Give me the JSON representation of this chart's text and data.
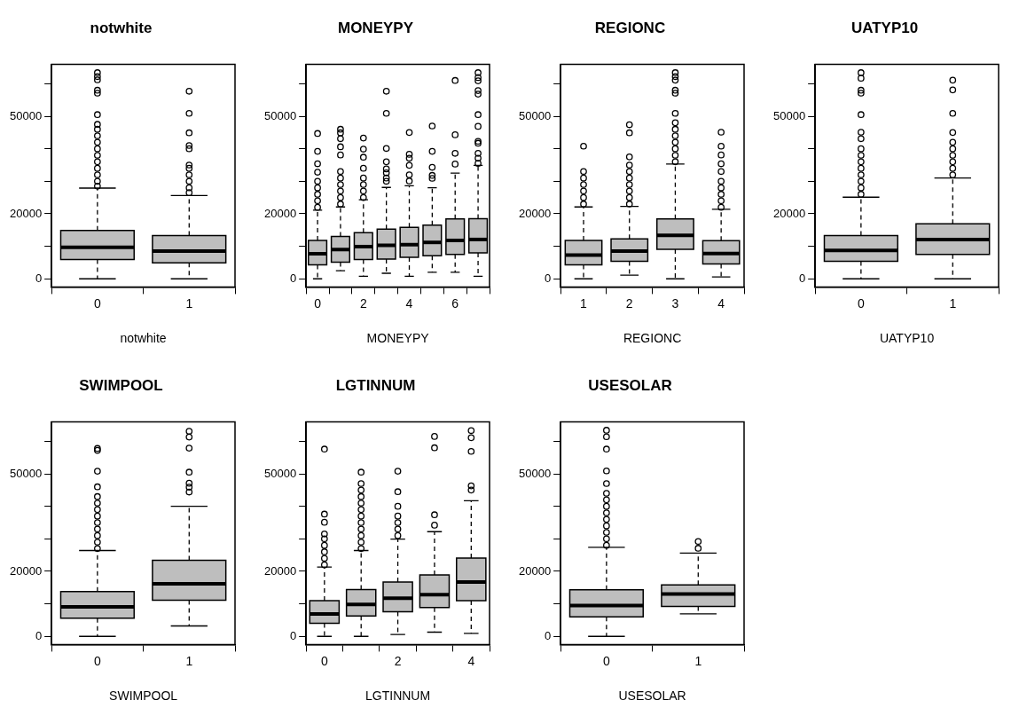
{
  "chart_data": [
    {
      "type": "box",
      "title": "notwhite",
      "xlabel": "notwhite",
      "categories": [
        "0",
        "1"
      ],
      "color": "#bebebe",
      "ylim": [
        -2500,
        66000
      ],
      "yticks": [
        0,
        {
          "value": 10000,
          "label": null
        },
        20000,
        {
          "value": 30000,
          "label": null
        },
        {
          "value": 40000,
          "label": null
        },
        50000,
        {
          "value": 60000,
          "label": null
        }
      ],
      "boxes": [
        {
          "low": 0,
          "q1": 5900,
          "median": 9700,
          "q3": 14900,
          "high": 27900,
          "outliers": [
            28500,
            30000,
            32000,
            34000,
            36000,
            38000,
            40000,
            42000,
            44000,
            46000,
            47500,
            50500,
            57100,
            58000,
            61200,
            62200,
            63400
          ]
        },
        {
          "low": 0,
          "q1": 4900,
          "median": 8500,
          "q3": 13300,
          "high": 25600,
          "outliers": [
            26500,
            28000,
            30000,
            32000,
            34000,
            35000,
            40000,
            41000,
            44900,
            50900,
            57700
          ]
        }
      ]
    },
    {
      "type": "box",
      "title": "MONEYPY",
      "xlabel": "MONEYPY",
      "categories": [
        "0",
        null,
        "2",
        null,
        "4",
        null,
        "6",
        null
      ],
      "color": "#bebebe",
      "ylim": [
        -2500,
        66000
      ],
      "yticks": [
        0,
        {
          "value": 10000,
          "label": null
        },
        20000,
        {
          "value": 30000,
          "label": null
        },
        {
          "value": 40000,
          "label": null
        },
        50000,
        {
          "value": 60000,
          "label": null
        }
      ],
      "boxes": [
        {
          "low": 0,
          "q1": 4300,
          "median": 7700,
          "q3": 11800,
          "high": 21100,
          "outliers": [
            22000,
            24000,
            26000,
            28000,
            30000,
            32800,
            35400,
            39200,
            44700
          ]
        },
        {
          "low": 2500,
          "q1": 5100,
          "median": 9000,
          "q3": 13000,
          "high": 22100,
          "outliers": [
            23000,
            25000,
            27000,
            29000,
            31000,
            33000,
            38100,
            40600,
            43100,
            44900,
            46000
          ]
        },
        {
          "low": 800,
          "q1": 5900,
          "median": 9900,
          "q3": 14200,
          "high": 24300,
          "outliers": [
            25000,
            27000,
            29000,
            31000,
            34000,
            37400,
            39900,
            43300
          ]
        },
        {
          "low": 1700,
          "q1": 6100,
          "median": 10300,
          "q3": 15300,
          "high": 28100,
          "outliers": [
            30000,
            31000,
            32600,
            33800,
            36000,
            40100,
            50900,
            57700
          ]
        },
        {
          "low": 800,
          "q1": 6600,
          "median": 10500,
          "q3": 15800,
          "high": 28600,
          "outliers": [
            30100,
            32000,
            34900,
            37100,
            38300,
            45000
          ]
        },
        {
          "low": 2000,
          "q1": 7100,
          "median": 11200,
          "q3": 16500,
          "high": 28000,
          "outliers": [
            30900,
            31800,
            34300,
            39200,
            47000
          ]
        },
        {
          "low": 2000,
          "q1": 7500,
          "median": 11800,
          "q3": 18400,
          "high": 32500,
          "outliers": [
            35300,
            38600,
            44300,
            61000
          ]
        },
        {
          "low": 800,
          "q1": 8000,
          "median": 12100,
          "q3": 18500,
          "high": 34900,
          "outliers": [
            35500,
            37100,
            38600,
            41700,
            42300,
            46900,
            50500,
            56800,
            57900,
            60900,
            61900,
            63400
          ]
        }
      ]
    },
    {
      "type": "box",
      "title": "REGIONC",
      "xlabel": "REGIONC",
      "categories": [
        "1",
        "2",
        "3",
        "4"
      ],
      "color": "#bebebe",
      "ylim": [
        -2500,
        66000
      ],
      "yticks": [
        0,
        {
          "value": 10000,
          "label": null
        },
        20000,
        {
          "value": 30000,
          "label": null
        },
        {
          "value": 40000,
          "label": null
        },
        50000,
        {
          "value": 60000,
          "label": null
        }
      ],
      "boxes": [
        {
          "low": 0,
          "q1": 4300,
          "median": 7300,
          "q3": 11800,
          "high": 22100,
          "outliers": [
            23000,
            25000,
            27000,
            29000,
            31000,
            33000,
            40800
          ]
        },
        {
          "low": 1100,
          "q1": 5400,
          "median": 8500,
          "q3": 12300,
          "high": 22300,
          "outliers": [
            23000,
            25000,
            27000,
            29000,
            31000,
            33000,
            35000,
            37500,
            44900,
            47400
          ]
        },
        {
          "low": 0,
          "q1": 9100,
          "median": 13400,
          "q3": 18400,
          "high": 35300,
          "outliers": [
            36000,
            38000,
            40000,
            42000,
            44000,
            46000,
            48000,
            50900,
            57100,
            58000,
            61100,
            62200,
            63400
          ]
        },
        {
          "low": 600,
          "q1": 4600,
          "median": 7800,
          "q3": 11700,
          "high": 21400,
          "outliers": [
            22000,
            24000,
            26000,
            28000,
            30000,
            33000,
            35400,
            38100,
            40800,
            45100
          ]
        }
      ]
    },
    {
      "type": "box",
      "title": "UATYP10",
      "xlabel": "UATYP10",
      "categories": [
        "0",
        "1"
      ],
      "color": "#bebebe",
      "ylim": [
        -2500,
        66000
      ],
      "yticks": [
        0,
        {
          "value": 10000,
          "label": null
        },
        20000,
        {
          "value": 30000,
          "label": null
        },
        {
          "value": 40000,
          "label": null
        },
        50000,
        {
          "value": 60000,
          "label": null
        }
      ],
      "boxes": [
        {
          "low": 0,
          "q1": 5400,
          "median": 8700,
          "q3": 13300,
          "high": 25100,
          "outliers": [
            26000,
            28000,
            30000,
            32000,
            34000,
            36000,
            38000,
            40000,
            43100,
            45100,
            50500,
            57100,
            58000,
            61700,
            63400
          ]
        },
        {
          "low": 0,
          "q1": 7500,
          "median": 12100,
          "q3": 16900,
          "high": 31000,
          "outliers": [
            32000,
            34000,
            36000,
            38000,
            40000,
            42000,
            45000,
            50900,
            58100,
            61100
          ]
        }
      ]
    },
    {
      "type": "box",
      "title": "SWIMPOOL",
      "xlabel": "SWIMPOOL",
      "categories": [
        "0",
        "1"
      ],
      "color": "#bebebe",
      "ylim": [
        -2500,
        66000
      ],
      "yticks": [
        0,
        {
          "value": 10000,
          "label": null
        },
        20000,
        {
          "value": 30000,
          "label": null
        },
        {
          "value": 40000,
          "label": null
        },
        50000,
        {
          "value": 60000,
          "label": null
        }
      ],
      "boxes": [
        {
          "low": 0,
          "q1": 5600,
          "median": 9100,
          "q3": 13800,
          "high": 26400,
          "outliers": [
            27000,
            29000,
            31000,
            33000,
            35000,
            37000,
            39000,
            41000,
            43000,
            46000,
            50800,
            57200,
            57800
          ]
        },
        {
          "low": 3200,
          "q1": 11100,
          "median": 16200,
          "q3": 23400,
          "high": 40000,
          "outliers": [
            44400,
            45900,
            47100,
            50500,
            57900,
            61300,
            63100
          ]
        }
      ]
    },
    {
      "type": "box",
      "title": "LGTINNUM",
      "xlabel": "LGTINNUM",
      "categories": [
        "0",
        null,
        "2",
        null,
        "4"
      ],
      "color": "#bebebe",
      "ylim": [
        -2500,
        66000
      ],
      "yticks": [
        0,
        {
          "value": 10000,
          "label": null
        },
        20000,
        {
          "value": 30000,
          "label": null
        },
        {
          "value": 40000,
          "label": null
        },
        50000,
        {
          "value": 60000,
          "label": null
        }
      ],
      "boxes": [
        {
          "low": 0,
          "q1": 4000,
          "median": 6900,
          "q3": 11000,
          "high": 21300,
          "outliers": [
            22000,
            24000,
            26000,
            28000,
            30000,
            31500,
            35100,
            37600,
            57600
          ]
        },
        {
          "low": 0,
          "q1": 6300,
          "median": 9800,
          "q3": 14400,
          "high": 26400,
          "outliers": [
            27000,
            29000,
            31000,
            33000,
            35000,
            37000,
            39000,
            41000,
            43000,
            45000,
            47000,
            50500
          ]
        },
        {
          "low": 600,
          "q1": 7600,
          "median": 11700,
          "q3": 16700,
          "high": 29900,
          "outliers": [
            31000,
            33000,
            35000,
            37000,
            40000,
            44500,
            50800
          ]
        },
        {
          "low": 1300,
          "q1": 8900,
          "median": 12800,
          "q3": 18900,
          "high": 32200,
          "outliers": [
            34200,
            37400,
            58000,
            61500
          ]
        },
        {
          "low": 900,
          "q1": 11000,
          "median": 16700,
          "q3": 24100,
          "high": 41700,
          "outliers": [
            45000,
            46300,
            56900,
            61100,
            63300
          ]
        }
      ]
    },
    {
      "type": "box",
      "title": "USESOLAR",
      "xlabel": "USESOLAR",
      "categories": [
        "0",
        "1"
      ],
      "color": "#bebebe",
      "ylim": [
        -2500,
        66000
      ],
      "yticks": [
        0,
        {
          "value": 10000,
          "label": null
        },
        20000,
        {
          "value": 30000,
          "label": null
        },
        {
          "value": 40000,
          "label": null
        },
        50000,
        {
          "value": 60000,
          "label": null
        }
      ],
      "boxes": [
        {
          "low": 0,
          "q1": 6000,
          "median": 9500,
          "q3": 14300,
          "high": 27400,
          "outliers": [
            28000,
            30000,
            32000,
            34000,
            36000,
            38000,
            40000,
            42000,
            44000,
            47000,
            50900,
            57600,
            61400,
            63400
          ]
        },
        {
          "low": 6900,
          "q1": 9200,
          "median": 13000,
          "q3": 15800,
          "high": 25600,
          "outliers": [
            27100,
            29200
          ]
        }
      ]
    }
  ]
}
